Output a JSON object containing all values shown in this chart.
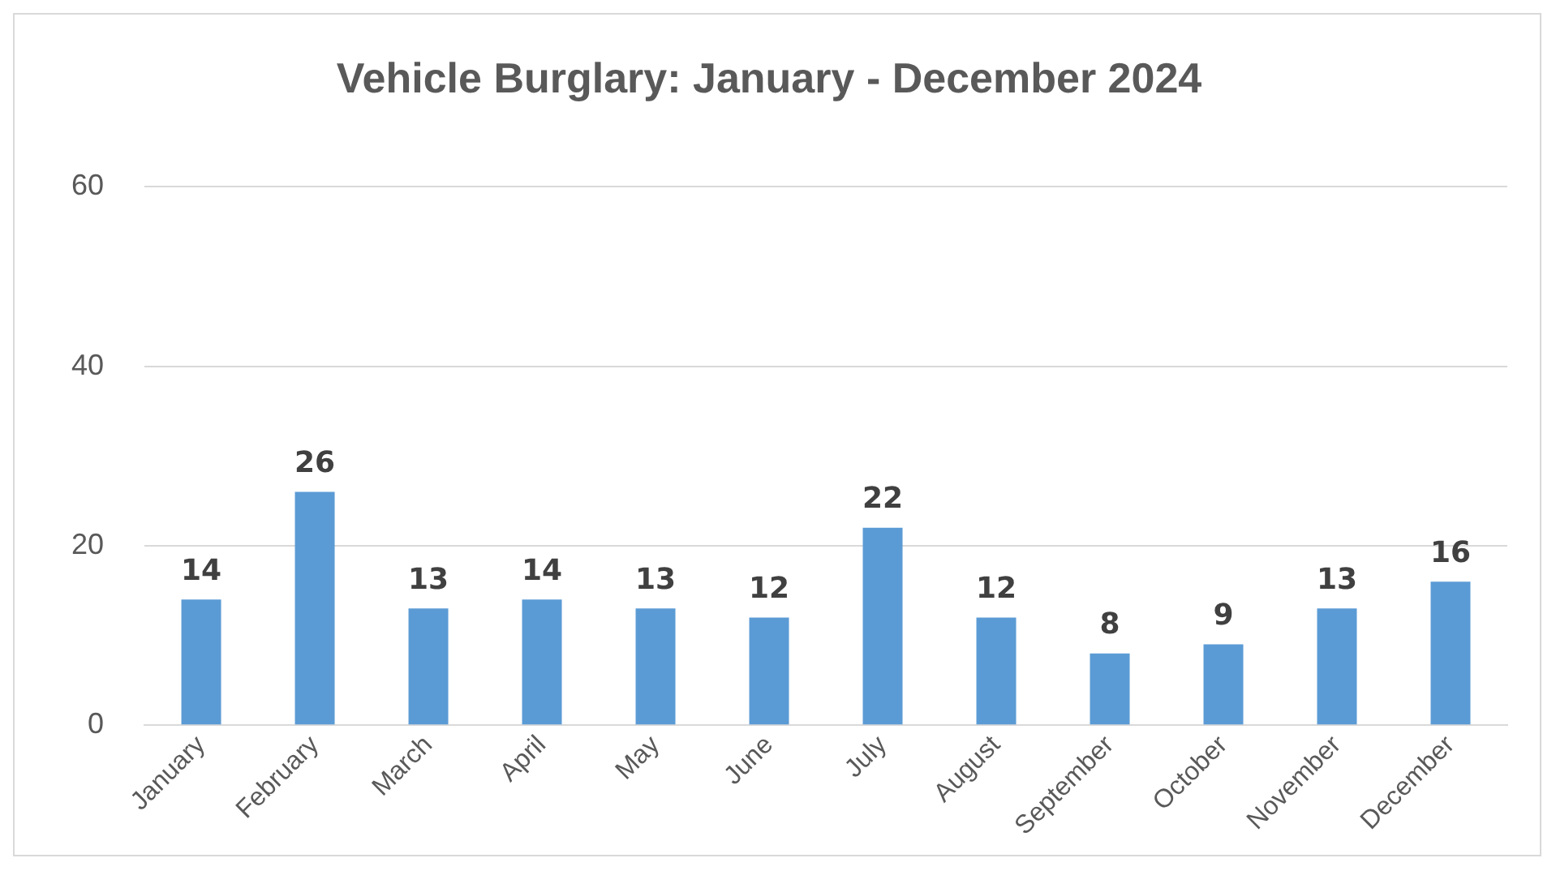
{
  "chart_data": {
    "type": "bar",
    "title": "Vehicle Burglary: January - December 2024",
    "categories": [
      "January",
      "February",
      "March",
      "April",
      "May",
      "June",
      "July",
      "August",
      "September",
      "October",
      "November",
      "December"
    ],
    "values": [
      14,
      26,
      13,
      14,
      13,
      12,
      22,
      12,
      8,
      9,
      13,
      16
    ],
    "color": "#5b9bd5",
    "ylim": [
      0,
      60
    ],
    "yticks": [
      0,
      20,
      40,
      60
    ],
    "grid": "y",
    "data_labels": true,
    "legend": false
  }
}
